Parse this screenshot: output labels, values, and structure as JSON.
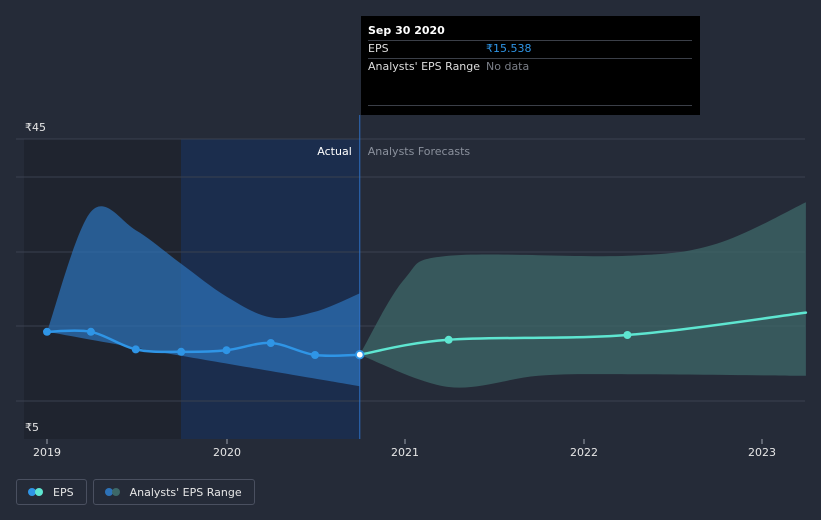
{
  "colors": {
    "background": "#252b38",
    "eps_actual": "#2f95e6",
    "eps_forecast": "#5ee6d1",
    "range_actual": "#2d72b8",
    "range_forecast": "#3d6868"
  },
  "chart_data": {
    "type": "line",
    "y_unit": "₹",
    "ylim": [
      5,
      45
    ],
    "y_ticks": [
      "₹45",
      "₹5"
    ],
    "x_ticks": [
      "2019",
      "2020",
      "2021",
      "2022",
      "2023"
    ],
    "xlim": [
      "2019-01-01",
      "2023-04-01"
    ],
    "divider_date": "2020-09-30",
    "grid": true,
    "region_labels": {
      "actual": "Actual",
      "forecast": "Analysts Forecasts"
    },
    "series": [
      {
        "name": "EPS",
        "segment": "actual",
        "points": [
          [
            "2019-01-01",
            18.4
          ],
          [
            "2019-03-31",
            18.4
          ],
          [
            "2019-06-30",
            16.2
          ],
          [
            "2019-09-30",
            15.9
          ],
          [
            "2019-12-31",
            16.1
          ],
          [
            "2020-03-31",
            17.0
          ],
          [
            "2020-06-30",
            15.5
          ],
          [
            "2020-09-30",
            15.538
          ]
        ]
      },
      {
        "name": "EPS",
        "segment": "forecast",
        "points": [
          [
            "2020-09-30",
            15.538
          ],
          [
            "2021-03-31",
            17.4
          ],
          [
            "2022-03-31",
            18.0
          ],
          [
            "2023-04-01",
            20.8
          ]
        ]
      },
      {
        "name": "Analysts' EPS Range",
        "segment": "actual",
        "upper": [
          [
            "2019-01-01",
            18.4
          ],
          [
            "2019-03-31",
            33.4
          ],
          [
            "2019-06-30",
            31.1
          ],
          [
            "2019-09-30",
            26.9
          ],
          [
            "2019-12-31",
            22.8
          ],
          [
            "2020-03-31",
            20.2
          ],
          [
            "2020-06-30",
            20.9
          ],
          [
            "2020-09-30",
            23.2
          ]
        ],
        "lower": [
          [
            "2019-01-01",
            18.4
          ],
          [
            "2019-09-30",
            15.4
          ],
          [
            "2020-09-30",
            11.6
          ]
        ]
      },
      {
        "name": "Analysts' EPS Range",
        "segment": "forecast",
        "upper": [
          [
            "2020-09-30",
            15.538
          ],
          [
            "2020-12-31",
            25.0
          ],
          [
            "2021-03-31",
            27.9
          ],
          [
            "2022-03-31",
            27.9
          ],
          [
            "2022-09-30",
            29.4
          ],
          [
            "2023-04-01",
            34.6
          ]
        ],
        "lower": [
          [
            "2020-09-30",
            15.538
          ],
          [
            "2021-03-31",
            11.5
          ],
          [
            "2021-09-30",
            12.9
          ],
          [
            "2022-03-31",
            13.1
          ],
          [
            "2023-04-01",
            12.9
          ]
        ]
      }
    ],
    "highlighted_point": [
      "2020-09-30",
      15.538
    ]
  },
  "tooltip": {
    "date": "Sep 30 2020",
    "rows": [
      {
        "label": "EPS",
        "value": "₹15.538"
      },
      {
        "label": "Analysts' EPS Range",
        "value": "No data"
      }
    ]
  },
  "legend": [
    {
      "label": "EPS",
      "icon": "eps-legend-icon"
    },
    {
      "label": "Analysts' EPS Range",
      "icon": "range-legend-icon"
    }
  ]
}
